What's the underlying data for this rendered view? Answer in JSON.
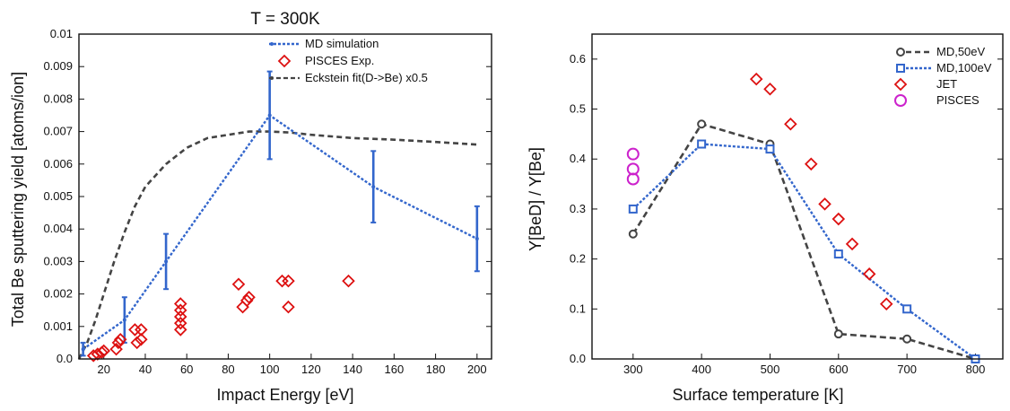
{
  "chart_data": [
    {
      "type": "line",
      "title": "T = 300K",
      "xlabel": "Impact Energy [eV]",
      "ylabel": "Total Be sputtering yield [atoms/ion]",
      "xlim": [
        8,
        207
      ],
      "ylim": [
        0,
        0.01
      ],
      "xticks": [
        "20",
        "40",
        "60",
        "80",
        "100",
        "120",
        "140",
        "160",
        "180",
        "200"
      ],
      "yticks": [
        "0.0",
        "0.001",
        "0.002",
        "0.003",
        "0.004",
        "0.005",
        "0.006",
        "0.007",
        "0.008",
        "0.009",
        "0.01"
      ],
      "legend_position": "top-right",
      "grid": false,
      "series": [
        {
          "name": "MD simulation",
          "style": "line-with-errorbars",
          "color": "#3366cc",
          "points": [
            {
              "x": 10,
              "y": 0.0003,
              "err": 0.0002
            },
            {
              "x": 30,
              "y": 0.0012,
              "err": 0.0007
            },
            {
              "x": 50,
              "y": 0.003,
              "err": 0.00085
            },
            {
              "x": 100,
              "y": 0.0075,
              "err": 0.00135
            },
            {
              "x": 150,
              "y": 0.0053,
              "err": 0.0011
            },
            {
              "x": 200,
              "y": 0.0037,
              "err": 0.001
            }
          ]
        },
        {
          "name": "PISCES Exp.",
          "style": "diamond-markers",
          "color": "#dd1111",
          "points": [
            {
              "x": 15,
              "y": 0.0001
            },
            {
              "x": 17,
              "y": 0.00015
            },
            {
              "x": 19,
              "y": 0.0002
            },
            {
              "x": 20,
              "y": 0.00025
            },
            {
              "x": 26,
              "y": 0.0003
            },
            {
              "x": 27,
              "y": 0.0005
            },
            {
              "x": 28,
              "y": 0.0006
            },
            {
              "x": 35,
              "y": 0.0009
            },
            {
              "x": 36,
              "y": 0.0005
            },
            {
              "x": 38,
              "y": 0.0006
            },
            {
              "x": 38,
              "y": 0.0009
            },
            {
              "x": 57,
              "y": 0.0009
            },
            {
              "x": 57,
              "y": 0.0011
            },
            {
              "x": 57,
              "y": 0.0013
            },
            {
              "x": 57,
              "y": 0.0015
            },
            {
              "x": 57,
              "y": 0.0017
            },
            {
              "x": 85,
              "y": 0.0023
            },
            {
              "x": 87,
              "y": 0.0016
            },
            {
              "x": 89,
              "y": 0.0018
            },
            {
              "x": 90,
              "y": 0.0019
            },
            {
              "x": 106,
              "y": 0.0024
            },
            {
              "x": 109,
              "y": 0.0024
            },
            {
              "x": 109,
              "y": 0.0016
            },
            {
              "x": 138,
              "y": 0.0024
            }
          ]
        },
        {
          "name": "Eckstein fit(D->Be) x0.5",
          "style": "dashed-line",
          "color": "#444444",
          "points": [
            {
              "x": 8,
              "y": 0.0
            },
            {
              "x": 12,
              "y": 0.0005
            },
            {
              "x": 16,
              "y": 0.0012
            },
            {
              "x": 20,
              "y": 0.002
            },
            {
              "x": 25,
              "y": 0.003
            },
            {
              "x": 30,
              "y": 0.0039
            },
            {
              "x": 35,
              "y": 0.0047
            },
            {
              "x": 40,
              "y": 0.0053
            },
            {
              "x": 50,
              "y": 0.006
            },
            {
              "x": 60,
              "y": 0.0065
            },
            {
              "x": 70,
              "y": 0.0068
            },
            {
              "x": 80,
              "y": 0.0069
            },
            {
              "x": 90,
              "y": 0.007
            },
            {
              "x": 100,
              "y": 0.007
            },
            {
              "x": 110,
              "y": 0.00697
            },
            {
              "x": 120,
              "y": 0.0069
            },
            {
              "x": 140,
              "y": 0.0068
            },
            {
              "x": 160,
              "y": 0.00675
            },
            {
              "x": 180,
              "y": 0.00668
            },
            {
              "x": 200,
              "y": 0.0066
            }
          ]
        }
      ]
    },
    {
      "type": "line",
      "title": "",
      "xlabel": "Surface temperature [K]",
      "ylabel": "Y[BeD] / Y[Be]",
      "xlim": [
        240,
        840
      ],
      "ylim": [
        0,
        0.65
      ],
      "xticks": [
        "300",
        "400",
        "500",
        "600",
        "700",
        "800"
      ],
      "yticks": [
        "0.0",
        "0.1",
        "0.2",
        "0.3",
        "0.4",
        "0.5",
        "0.6"
      ],
      "legend_position": "top-right",
      "grid": false,
      "series": [
        {
          "name": "MD,50eV",
          "style": "dashed-line-circles",
          "color": "#444444",
          "points": [
            {
              "x": 300,
              "y": 0.25
            },
            {
              "x": 400,
              "y": 0.47
            },
            {
              "x": 500,
              "y": 0.43
            },
            {
              "x": 600,
              "y": 0.05
            },
            {
              "x": 700,
              "y": 0.04
            },
            {
              "x": 800,
              "y": 0.0
            }
          ]
        },
        {
          "name": "MD,100eV",
          "style": "dotted-line-squares",
          "color": "#3366cc",
          "points": [
            {
              "x": 300,
              "y": 0.3
            },
            {
              "x": 400,
              "y": 0.43
            },
            {
              "x": 500,
              "y": 0.42
            },
            {
              "x": 600,
              "y": 0.21
            },
            {
              "x": 700,
              "y": 0.1
            },
            {
              "x": 800,
              "y": 0.0
            }
          ]
        },
        {
          "name": "JET",
          "style": "diamond-markers",
          "color": "#dd1111",
          "points": [
            {
              "x": 480,
              "y": 0.56
            },
            {
              "x": 500,
              "y": 0.54
            },
            {
              "x": 530,
              "y": 0.47
            },
            {
              "x": 560,
              "y": 0.39
            },
            {
              "x": 580,
              "y": 0.31
            },
            {
              "x": 600,
              "y": 0.28
            },
            {
              "x": 620,
              "y": 0.23
            },
            {
              "x": 645,
              "y": 0.17
            },
            {
              "x": 670,
              "y": 0.11
            }
          ]
        },
        {
          "name": "PISCES",
          "style": "circle-markers",
          "color": "#cc22cc",
          "points": [
            {
              "x": 300,
              "y": 0.41
            },
            {
              "x": 300,
              "y": 0.38
            },
            {
              "x": 300,
              "y": 0.36
            }
          ]
        }
      ]
    }
  ]
}
